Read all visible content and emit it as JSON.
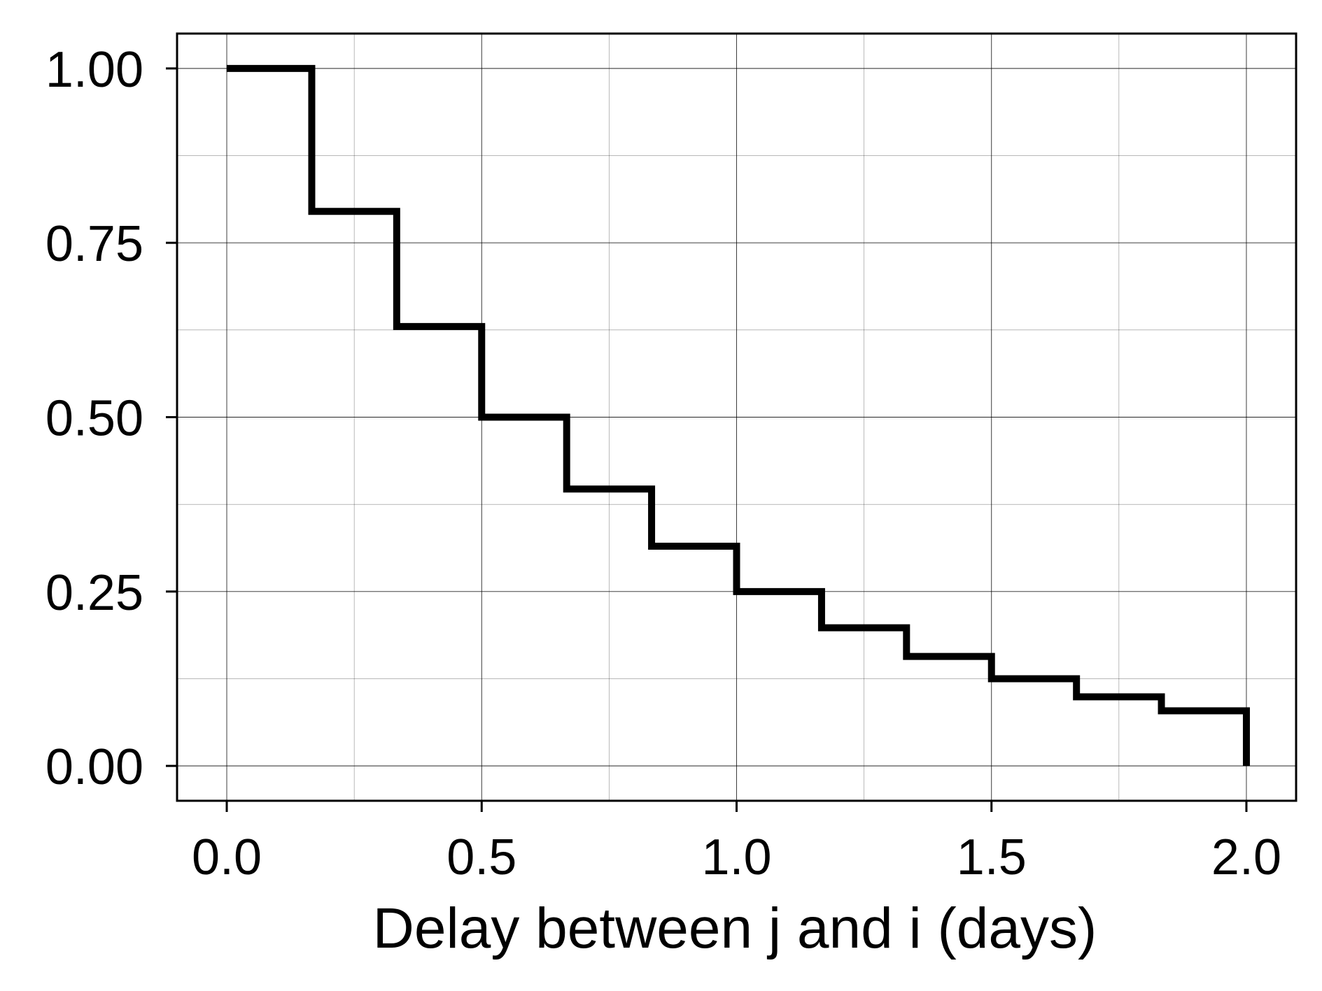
{
  "chart_data": {
    "type": "line",
    "step": "post",
    "title": "",
    "xlabel": "Delay between j and i (days)",
    "ylabel": "",
    "xlim": [
      -0.0975,
      2.0975
    ],
    "ylim": [
      -0.05,
      1.05
    ],
    "x_ticks": [
      "0.0",
      "0.5",
      "1.0",
      "1.5",
      "2.0"
    ],
    "y_ticks": [
      "0.00",
      "0.25",
      "0.50",
      "0.75",
      "1.00"
    ],
    "grid": true,
    "series": [
      {
        "x": [
          0.0,
          0.1667,
          0.3333,
          0.5,
          0.6667,
          0.8333,
          1.0,
          1.1667,
          1.3333,
          1.5,
          1.6667,
          1.8333,
          2.0
        ],
        "y": [
          1.0,
          0.795,
          0.63,
          0.5,
          0.397,
          0.315,
          0.25,
          0.198,
          0.157,
          0.125,
          0.099,
          0.079,
          0.0
        ]
      }
    ],
    "colors": {
      "line": "#000000",
      "grid": "#000000",
      "background": "#ffffff"
    }
  }
}
